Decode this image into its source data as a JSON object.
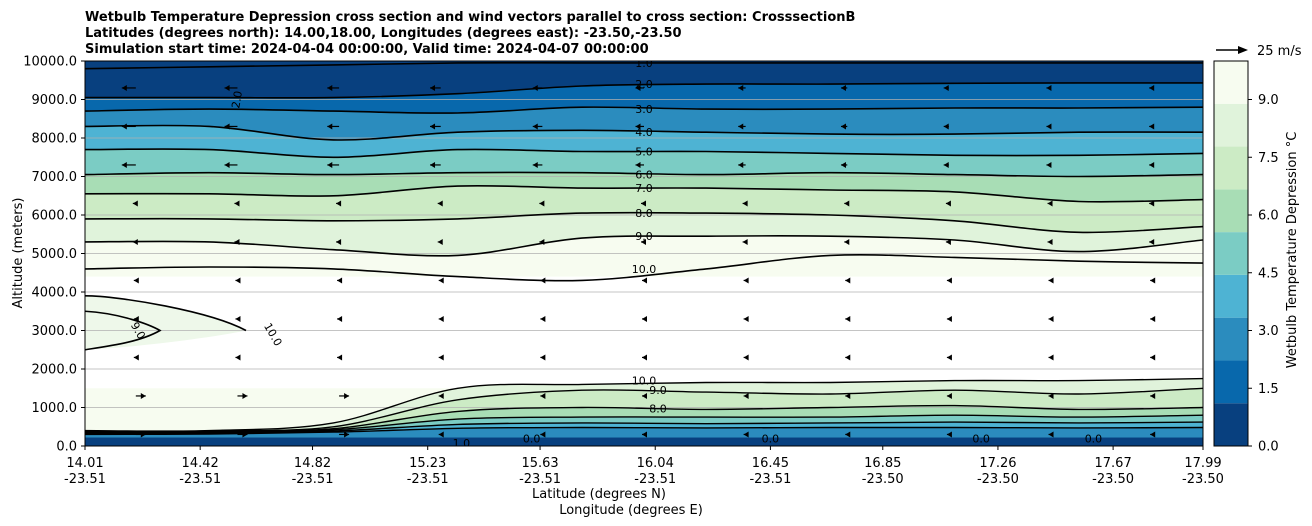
{
  "chart_data": {
    "type": "contour",
    "title_lines": [
      "Wetbulb Temperature Depression cross section and wind vectors parallel to cross section: CrosssectionB",
      "Latitudes (degrees north): 14.00,18.00, Longitudes (degrees east): -23.50,-23.50",
      "Simulation start time: 2024-04-04 00:00:00, Valid time: 2024-04-07 00:00:00"
    ],
    "xlabel_lat": "Latitude (degrees N)",
    "xlabel_lon": "Longitude (degrees E)",
    "ylabel": "Altitude (meters)",
    "x_range": [
      14.01,
      17.99
    ],
    "ylim": [
      0,
      10000
    ],
    "x_ticks": [
      {
        "lat": "14.01",
        "lon": "-23.51",
        "value": 14.01
      },
      {
        "lat": "14.42",
        "lon": "-23.51",
        "value": 14.42
      },
      {
        "lat": "14.82",
        "lon": "-23.51",
        "value": 14.82
      },
      {
        "lat": "15.23",
        "lon": "-23.51",
        "value": 15.23
      },
      {
        "lat": "15.63",
        "lon": "-23.51",
        "value": 15.63
      },
      {
        "lat": "16.04",
        "lon": "-23.51",
        "value": 16.04
      },
      {
        "lat": "16.45",
        "lon": "-23.51",
        "value": 16.45
      },
      {
        "lat": "16.85",
        "lon": "-23.50",
        "value": 16.85
      },
      {
        "lat": "17.26",
        "lon": "-23.50",
        "value": 17.26
      },
      {
        "lat": "17.67",
        "lon": "-23.50",
        "value": 17.67
      },
      {
        "lat": "17.99",
        "lon": "-23.50",
        "value": 17.99
      }
    ],
    "y_ticks": [
      "0.0",
      "1000.0",
      "2000.0",
      "3000.0",
      "4000.0",
      "5000.0",
      "6000.0",
      "7000.0",
      "8000.0",
      "9000.0",
      "10000.0"
    ],
    "y_tick_values": [
      0,
      1000,
      2000,
      3000,
      4000,
      5000,
      6000,
      7000,
      8000,
      9000,
      10000
    ],
    "colorbar": {
      "label": "Wetbulb Temperature Depression °C",
      "range": [
        0,
        10
      ],
      "tick_labels": [
        "0.0",
        "1.5",
        "3.0",
        "4.5",
        "6.0",
        "7.5",
        "9.0"
      ],
      "tick_values": [
        0,
        1.5,
        3.0,
        4.5,
        6.0,
        7.5,
        9.0
      ],
      "colors": [
        "#08407f",
        "#0868ac",
        "#2b8cbe",
        "#4eb3d3",
        "#7bccc4",
        "#a8ddb5",
        "#ccebc5",
        "#e0f3db",
        "#f7fcf0"
      ]
    },
    "quiver_key": "25 m/s",
    "upper_contour_labels": [
      "1.0",
      "2.0",
      "2.0",
      "3.0",
      "4.0",
      "5.0",
      "6.0",
      "7.0",
      "8.0",
      "9.0",
      "10.0"
    ],
    "mid_contour_labels": [
      "9.0",
      "10.0",
      "2.0"
    ],
    "lower_contour_labels": [
      "10.0",
      "9.0",
      "8.0",
      "0.0",
      "0.0",
      "0.0",
      "0.0",
      "0.0",
      "1.0",
      "2.0",
      "1.0"
    ],
    "upper_levels": [
      {
        "level": 1.0,
        "label": "1.0",
        "y": [
          9800,
          9850,
          9900,
          9950,
          9950,
          9950,
          9950,
          9950,
          9950,
          9950
        ]
      },
      {
        "level": 2.0,
        "label": "2.0",
        "y": [
          9050,
          9050,
          9050,
          9150,
          9350,
          9400,
          9400,
          9420,
          9430,
          9430
        ]
      },
      {
        "level": 3.0,
        "label": "3.0",
        "y": [
          8700,
          8750,
          8700,
          8650,
          8800,
          8750,
          8750,
          8780,
          8780,
          8800
        ]
      },
      {
        "level": 4.0,
        "label": "4.0",
        "y": [
          8300,
          8300,
          7950,
          8150,
          8200,
          8150,
          8100,
          8100,
          8150,
          8150
        ]
      },
      {
        "level": 5.0,
        "label": "5.0",
        "y": [
          7700,
          7700,
          7500,
          7700,
          7650,
          7650,
          7600,
          7550,
          7550,
          7600
        ]
      },
      {
        "level": 6.0,
        "label": "6.0",
        "y": [
          7050,
          7100,
          7050,
          7100,
          7100,
          7050,
          7100,
          7050,
          7000,
          7050
        ]
      },
      {
        "level": 7.0,
        "label": "7.0",
        "y": [
          6550,
          6550,
          6500,
          6750,
          6700,
          6700,
          6650,
          6600,
          6350,
          6400
        ]
      },
      {
        "level": 8.0,
        "label": "8.0",
        "y": [
          5900,
          5900,
          5850,
          5900,
          6050,
          6050,
          6000,
          5850,
          5550,
          5700
        ]
      },
      {
        "level": 9.0,
        "label": "9.0",
        "y": [
          5300,
          5300,
          5100,
          4950,
          5400,
          5450,
          5450,
          5350,
          5050,
          5350
        ]
      },
      {
        "level": 10.0,
        "label": "10.0",
        "y": [
          4600,
          4650,
          4600,
          4400,
          4300,
          4600,
          4950,
          4900,
          4800,
          4750
        ]
      }
    ],
    "lower_levels": [
      {
        "level": 10.0,
        "label": "10.0",
        "y": [
          400,
          400,
          600,
          1500,
          1600,
          1650,
          1650,
          1700,
          1700,
          1750
        ]
      },
      {
        "level": 9.0,
        "label": "9.0",
        "y": [
          380,
          390,
          500,
          1200,
          1450,
          1400,
          1350,
          1450,
          1350,
          1500
        ]
      },
      {
        "level": 8.0,
        "label": "8.0",
        "y": [
          360,
          370,
          450,
          900,
          1000,
          950,
          1000,
          1050,
          950,
          1000
        ]
      },
      {
        "level": 7.0,
        "label": "7.0",
        "y": [
          340,
          350,
          420,
          700,
          750,
          750,
          750,
          800,
          750,
          800
        ]
      },
      {
        "level": 5.0,
        "label": "5.0",
        "y": [
          320,
          330,
          390,
          560,
          600,
          580,
          600,
          620,
          600,
          620
        ]
      },
      {
        "level": 3.0,
        "label": "3.0",
        "y": [
          300,
          310,
          360,
          460,
          480,
          470,
          480,
          480,
          470,
          480
        ]
      }
    ]
  }
}
